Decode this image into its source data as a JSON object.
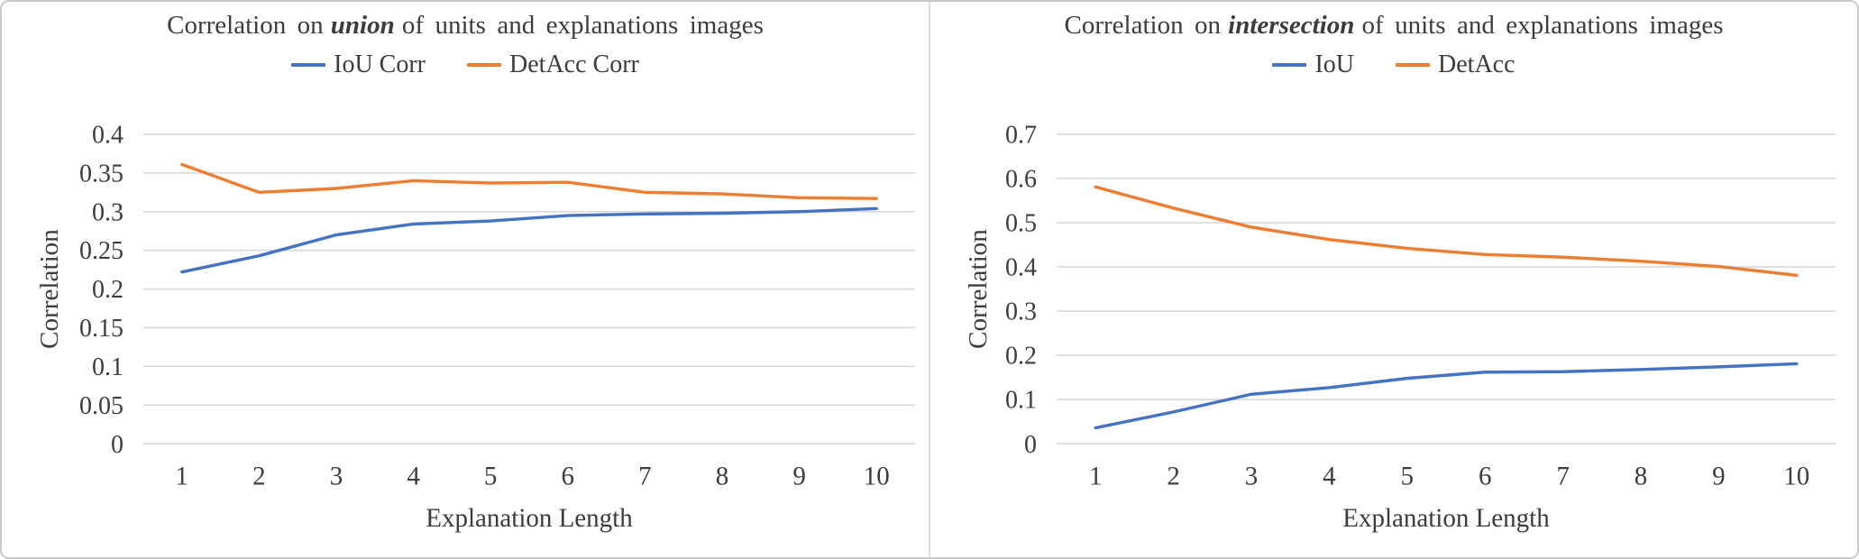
{
  "colors": {
    "series_blue": "#4472C4",
    "series_orange": "#ED7D31",
    "gridline": "#D9D9D9",
    "text": "#3C3C3C"
  },
  "chart_data": [
    {
      "type": "line",
      "title": "Correlation on union of units and explanations images",
      "title_parts": {
        "prefix": "Correlation on",
        "emphasis": "union",
        "suffix": "of units and explanations images"
      },
      "xlabel": "Explanation Length",
      "ylabel": "Correlation",
      "categories": [
        "1",
        "2",
        "3",
        "4",
        "5",
        "6",
        "7",
        "8",
        "9",
        "10"
      ],
      "ylim": [
        0,
        0.4
      ],
      "y_tick_labels": [
        "0",
        "0.05",
        "0.1",
        "0.15",
        "0.2",
        "0.25",
        "0.3",
        "0.35",
        "0.4"
      ],
      "grid": true,
      "legend_position": "top",
      "series": [
        {
          "name": "IoU Corr",
          "color": "#4472C4",
          "values": [
            0.222,
            0.243,
            0.27,
            0.284,
            0.288,
            0.295,
            0.297,
            0.298,
            0.3,
            0.304
          ]
        },
        {
          "name": "DetAcc Corr",
          "color": "#ED7D31",
          "values": [
            0.361,
            0.325,
            0.33,
            0.34,
            0.337,
            0.338,
            0.325,
            0.323,
            0.318,
            0.317
          ]
        }
      ]
    },
    {
      "type": "line",
      "title": "Correlation on intersection of units and explanations images",
      "title_parts": {
        "prefix": "Correlation on",
        "emphasis": "intersection",
        "suffix": "of units and explanations images"
      },
      "xlabel": "Explanation Length",
      "ylabel": "Correlation",
      "categories": [
        "1",
        "2",
        "3",
        "4",
        "5",
        "6",
        "7",
        "8",
        "9",
        "10"
      ],
      "ylim": [
        0,
        0.7
      ],
      "y_tick_labels": [
        "0",
        "0.1",
        "0.2",
        "0.3",
        "0.4",
        "0.5",
        "0.6",
        "0.7"
      ],
      "grid": true,
      "legend_position": "top",
      "series": [
        {
          "name": "IoU",
          "color": "#4472C4",
          "values": [
            0.036,
            0.072,
            0.112,
            0.127,
            0.148,
            0.162,
            0.163,
            0.168,
            0.174,
            0.181
          ]
        },
        {
          "name": "DetAcc",
          "color": "#ED7D31",
          "values": [
            0.581,
            0.533,
            0.49,
            0.462,
            0.442,
            0.428,
            0.422,
            0.413,
            0.401,
            0.381
          ]
        }
      ]
    }
  ]
}
